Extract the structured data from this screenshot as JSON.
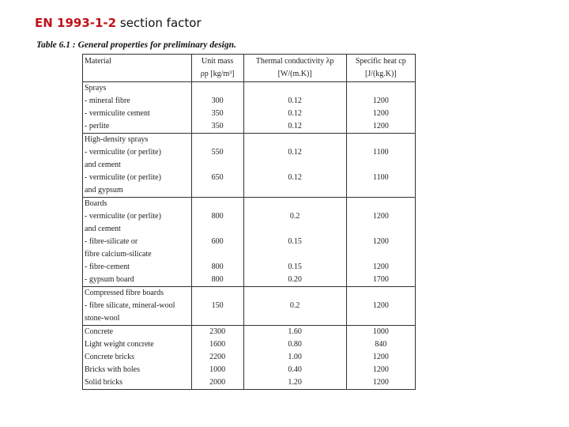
{
  "slide": {
    "title_red": "EN 1993-1-2",
    "title_rest": "section factor"
  },
  "table": {
    "caption": "Table 6.1 : General properties for preliminary design.",
    "header": {
      "material": "Material",
      "mass_line1": "Unit mass",
      "mass_line2": "ρp [kg/m³]",
      "cond_line1": "Thermal conductivity λp",
      "cond_line2": "[W/(m.K)]",
      "heat_line1": "Specific heat cp",
      "heat_line2": "[J/(kg.K)]"
    },
    "rows": [
      {
        "material": "Sprays",
        "mass": "",
        "cond": "",
        "heat": ""
      },
      {
        "material": "- mineral fibre",
        "mass": "300",
        "cond": "0.12",
        "heat": "1200"
      },
      {
        "material": "- vermiculite cement",
        "mass": "350",
        "cond": "0.12",
        "heat": "1200"
      },
      {
        "material": "- perlite",
        "mass": "350",
        "cond": "0.12",
        "heat": "1200"
      },
      {
        "material": "High-density sprays",
        "mass": "",
        "cond": "",
        "heat": ""
      },
      {
        "material": "- vermiculite (or perlite)",
        "mass": "550",
        "cond": "0.12",
        "heat": "1100"
      },
      {
        "material": "and cement",
        "mass": "",
        "cond": "",
        "heat": ""
      },
      {
        "material": "- vermiculite (or perlite)",
        "mass": "650",
        "cond": "0.12",
        "heat": "1100"
      },
      {
        "material": "and gypsum",
        "mass": "",
        "cond": "",
        "heat": ""
      },
      {
        "material": "Boards",
        "mass": "",
        "cond": "",
        "heat": ""
      },
      {
        "material": "- vermiculite (or perlite)",
        "mass": "800",
        "cond": "0.2",
        "heat": "1200"
      },
      {
        "material": "and cement",
        "mass": "",
        "cond": "",
        "heat": ""
      },
      {
        "material": "- fibre-silicate or",
        "mass": "600",
        "cond": "0.15",
        "heat": "1200"
      },
      {
        "material": "fibre calcium-silicate",
        "mass": "",
        "cond": "",
        "heat": ""
      },
      {
        "material": "- fibre-cement",
        "mass": "800",
        "cond": "0.15",
        "heat": "1200"
      },
      {
        "material": "- gypsum board",
        "mass": "800",
        "cond": "0.20",
        "heat": "1700"
      },
      {
        "material": "Compressed fibre boards",
        "mass": "",
        "cond": "",
        "heat": ""
      },
      {
        "material": "- fibre silicate, mineral-wool",
        "mass": "150",
        "cond": "0.2",
        "heat": "1200"
      },
      {
        "material": "stone-wool",
        "mass": "",
        "cond": "",
        "heat": ""
      },
      {
        "material": "Concrete",
        "mass": "2300",
        "cond": "1.60",
        "heat": "1000"
      },
      {
        "material": "Light weight concrete",
        "mass": "1600",
        "cond": "0.80",
        "heat": "840"
      },
      {
        "material": "Concrete bricks",
        "mass": "2200",
        "cond": "1.00",
        "heat": "1200"
      },
      {
        "material": "Bricks with holes",
        "mass": "1000",
        "cond": "0.40",
        "heat": "1200"
      },
      {
        "material": "Solid bricks",
        "mass": "2000",
        "cond": "1.20",
        "heat": "1200"
      }
    ]
  }
}
